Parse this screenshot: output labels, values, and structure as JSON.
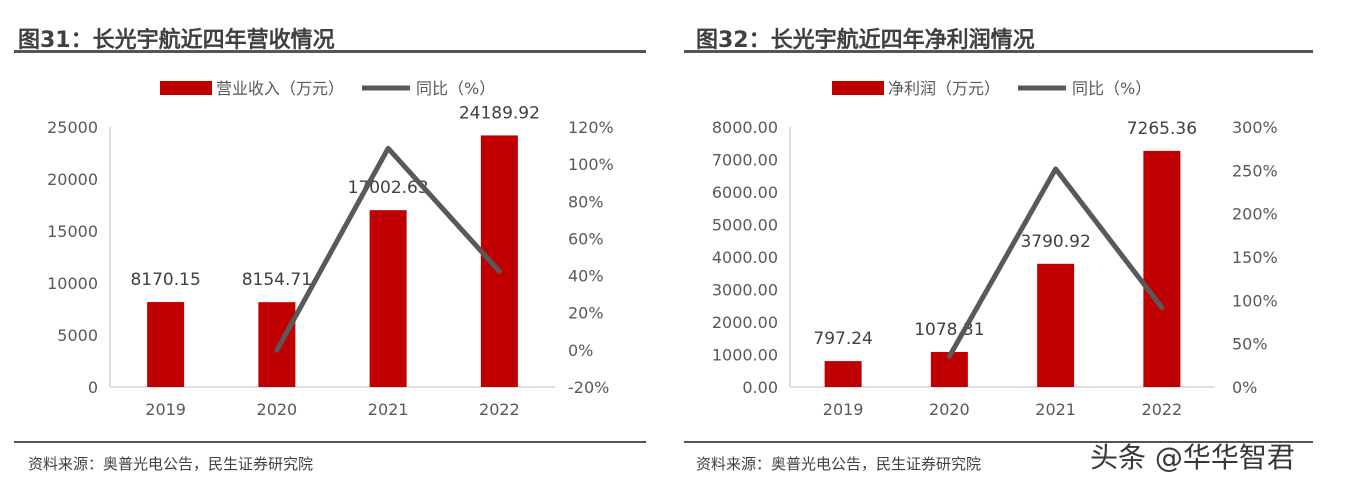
{
  "colors": {
    "bar": "#c00000",
    "line": "#595959",
    "rule": "#555555"
  },
  "watermark": "头条 @华华智君",
  "panels": [
    {
      "title": "图31：长光宇航近四年营收情况",
      "source": "资料来源：奥普光电公告，民生证券研究院"
    },
    {
      "title": "图32：长光宇航近四年净利润情况",
      "source": "资料来源：奥普光电公告，民生证券研究院"
    }
  ],
  "chart_data": [
    {
      "type": "bar",
      "title": "",
      "categories": [
        "2019",
        "2020",
        "2021",
        "2022"
      ],
      "series": [
        {
          "name": "营业收入（万元）",
          "type": "bar",
          "axis": "left",
          "values": [
            8170.15,
            8154.71,
            17002.63,
            24189.92
          ],
          "labels": [
            "8170.15",
            "8154.71",
            "17002.63",
            "24189.92"
          ]
        },
        {
          "name": "同比（%）",
          "type": "line",
          "axis": "right",
          "values": [
            null,
            -0.2,
            108.5,
            42.3
          ]
        }
      ],
      "ylim": [
        0,
        25000
      ],
      "yticks": [
        "0",
        "5000",
        "10000",
        "15000",
        "20000",
        "25000"
      ],
      "y2lim": [
        -20,
        120
      ],
      "y2ticks": [
        "-20%",
        "0%",
        "20%",
        "40%",
        "60%",
        "80%",
        "100%",
        "120%"
      ],
      "legend_position": "top"
    },
    {
      "type": "bar",
      "title": "",
      "categories": [
        "2019",
        "2020",
        "2021",
        "2022"
      ],
      "series": [
        {
          "name": "净利润（万元）",
          "type": "bar",
          "axis": "left",
          "values": [
            797.24,
            1078.31,
            3790.92,
            7265.36
          ],
          "labels": [
            "797.24",
            "1078.31",
            "3790.92",
            "7265.36"
          ]
        },
        {
          "name": "同比（%）",
          "type": "line",
          "axis": "right",
          "values": [
            null,
            35.3,
            251.6,
            91.7
          ]
        }
      ],
      "ylim": [
        0,
        8000
      ],
      "yticks": [
        "0.00",
        "1000.00",
        "2000.00",
        "3000.00",
        "4000.00",
        "5000.00",
        "6000.00",
        "7000.00",
        "8000.00"
      ],
      "y2lim": [
        0,
        300
      ],
      "y2ticks": [
        "0%",
        "50%",
        "100%",
        "150%",
        "200%",
        "250%",
        "300%"
      ],
      "legend_position": "top"
    }
  ]
}
